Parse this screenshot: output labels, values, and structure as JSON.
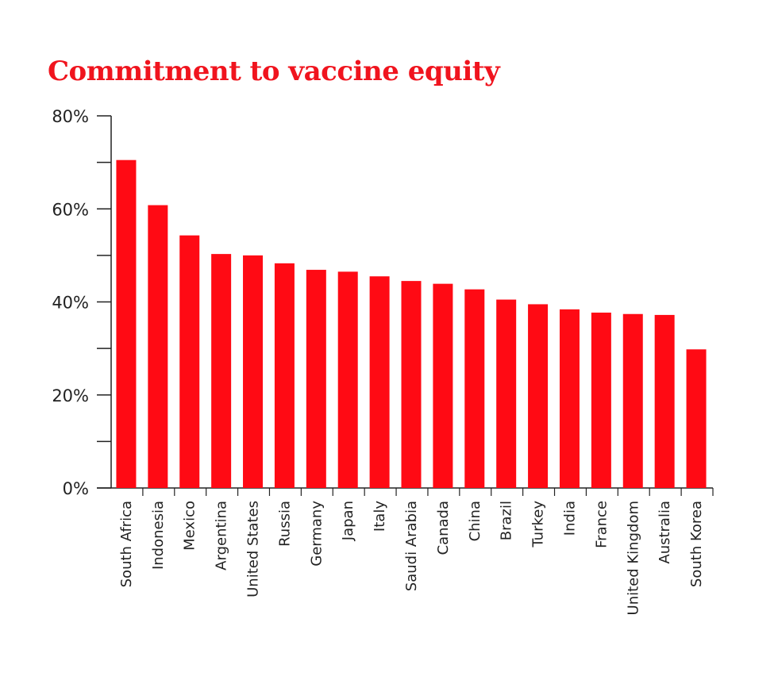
{
  "chart_data": {
    "type": "bar",
    "title": "Commitment to vaccine equity",
    "xlabel": "",
    "ylabel": "",
    "ylim": [
      0,
      80
    ],
    "yticks": [
      "0%",
      "20%",
      "40%",
      "60%",
      "80%"
    ],
    "grid": false,
    "bar_color": "#ff0a14",
    "categories": [
      "South Africa",
      "Indonesia",
      "Mexico",
      "Argentina",
      "United States",
      "Russia",
      "Germany",
      "Japan",
      "Italy",
      "Saudi Arabia",
      "Canada",
      "China",
      "Brazil",
      "Turkey",
      "India",
      "France",
      "United Kingdom",
      "Australia",
      "South Korea"
    ],
    "values": [
      70.5,
      60.8,
      54.3,
      50.3,
      50.0,
      48.3,
      46.9,
      46.5,
      45.5,
      44.5,
      43.9,
      42.7,
      40.5,
      39.5,
      38.4,
      37.7,
      37.4,
      37.2,
      29.8
    ]
  }
}
